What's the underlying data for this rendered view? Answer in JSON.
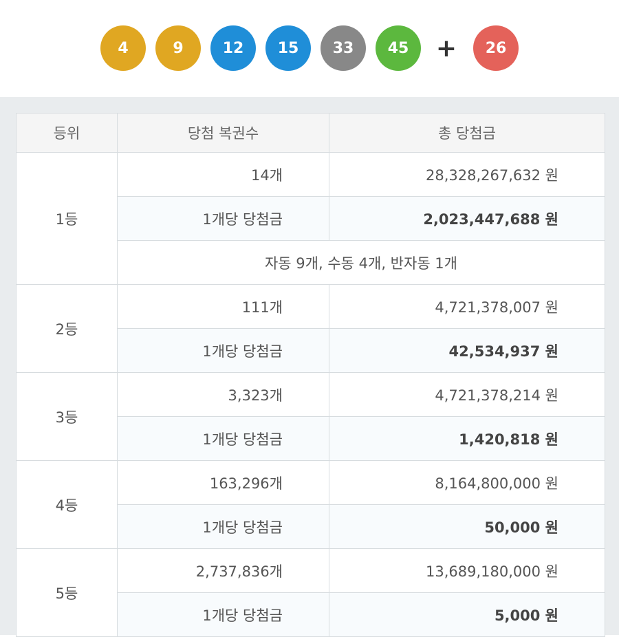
{
  "numbers": [
    {
      "value": "4",
      "color": "#e0a722"
    },
    {
      "value": "9",
      "color": "#e0a722"
    },
    {
      "value": "12",
      "color": "#1f8ed8"
    },
    {
      "value": "15",
      "color": "#1f8ed8"
    },
    {
      "value": "33",
      "color": "#888888"
    },
    {
      "value": "45",
      "color": "#5cb83e"
    }
  ],
  "plus": "+",
  "bonus": {
    "value": "26",
    "color": "#e4625a"
  },
  "table": {
    "headers": [
      "등위",
      "당첨 복권수",
      "총 당첨금"
    ],
    "per_label": "1개당 당첨금",
    "rows": [
      {
        "rank": "1등",
        "count": "14개",
        "total": "28,328,267,632 원",
        "per": "2,023,447,688 원",
        "note": "자동 9개, 수동 4개, 반자동 1개"
      },
      {
        "rank": "2등",
        "count": "111개",
        "total": "4,721,378,007 원",
        "per": "42,534,937 원"
      },
      {
        "rank": "3등",
        "count": "3,323개",
        "total": "4,721,378,214 원",
        "per": "1,420,818 원"
      },
      {
        "rank": "4등",
        "count": "163,296개",
        "total": "8,164,800,000 원",
        "per": "50,000 원"
      },
      {
        "rank": "5등",
        "count": "2,737,836개",
        "total": "13,689,180,000 원",
        "per": "5,000 원"
      }
    ]
  }
}
